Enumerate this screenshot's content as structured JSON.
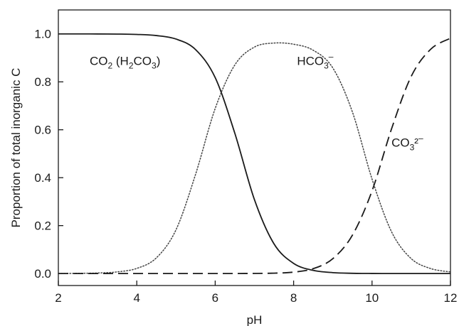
{
  "chart_data": {
    "type": "line",
    "xlabel": "pH",
    "ylabel": "Proportion of total inorganic C",
    "xlim": [
      2,
      12
    ],
    "ylim": [
      -0.05,
      1.1
    ],
    "xticks": [
      2,
      4,
      6,
      8,
      10,
      12
    ],
    "yticks": [
      0.0,
      0.2,
      0.4,
      0.6,
      0.8,
      1.0
    ],
    "xtick_labels": [
      "2",
      "4",
      "6",
      "8",
      "10",
      "12"
    ],
    "ytick_labels": [
      "0.0",
      "0.2",
      "0.4",
      "0.6",
      "0.8",
      "1.0"
    ],
    "grid": false,
    "x": [
      2.0,
      2.5,
      3.0,
      3.5,
      4.0,
      4.5,
      5.0,
      5.5,
      6.0,
      6.5,
      7.0,
      7.5,
      8.0,
      8.5,
      9.0,
      9.5,
      10.0,
      10.5,
      11.0,
      11.5,
      12.0
    ],
    "series": [
      {
        "color": "#1a1a1a",
        "dash": "solid",
        "values": [
          1.0,
          1.0,
          0.9998,
          0.9993,
          0.9978,
          0.9931,
          0.9786,
          0.9345,
          0.8176,
          0.5857,
          0.3088,
          0.1238,
          0.0423,
          0.0132,
          0.0038,
          0.001,
          0.0002,
          0.0,
          0.0,
          0.0,
          0.0
        ]
      },
      {
        "color": "#444444",
        "dash": "dotted",
        "values": [
          0.0,
          0.0007,
          0.0022,
          0.0069,
          0.0214,
          0.0655,
          0.1824,
          0.4142,
          0.6888,
          0.8704,
          0.945,
          0.9618,
          0.9569,
          0.9318,
          0.8578,
          0.6738,
          0.3942,
          0.1735,
          0.0621,
          0.0206,
          0.0066
        ]
      },
      {
        "color": "#1a1a1a",
        "dash": "dashed",
        "values": [
          0.0,
          0.0,
          0.0,
          0.0,
          0.0,
          0.0,
          0.0,
          0.0,
          0.0,
          0.0001,
          0.0004,
          0.0016,
          0.0059,
          0.0203,
          0.0622,
          0.1603,
          0.345,
          0.605,
          0.8231,
          0.9367,
          0.9819
        ]
      }
    ],
    "annotations": [
      {
        "text": "CO₂ (H₂CO₃)",
        "x": 3.7,
        "y": 0.87
      },
      {
        "text": "HCO₃⁻",
        "x": 8.55,
        "y": 0.87
      },
      {
        "text": "CO₃²⁻",
        "x": 10.9,
        "y": 0.53
      }
    ]
  }
}
